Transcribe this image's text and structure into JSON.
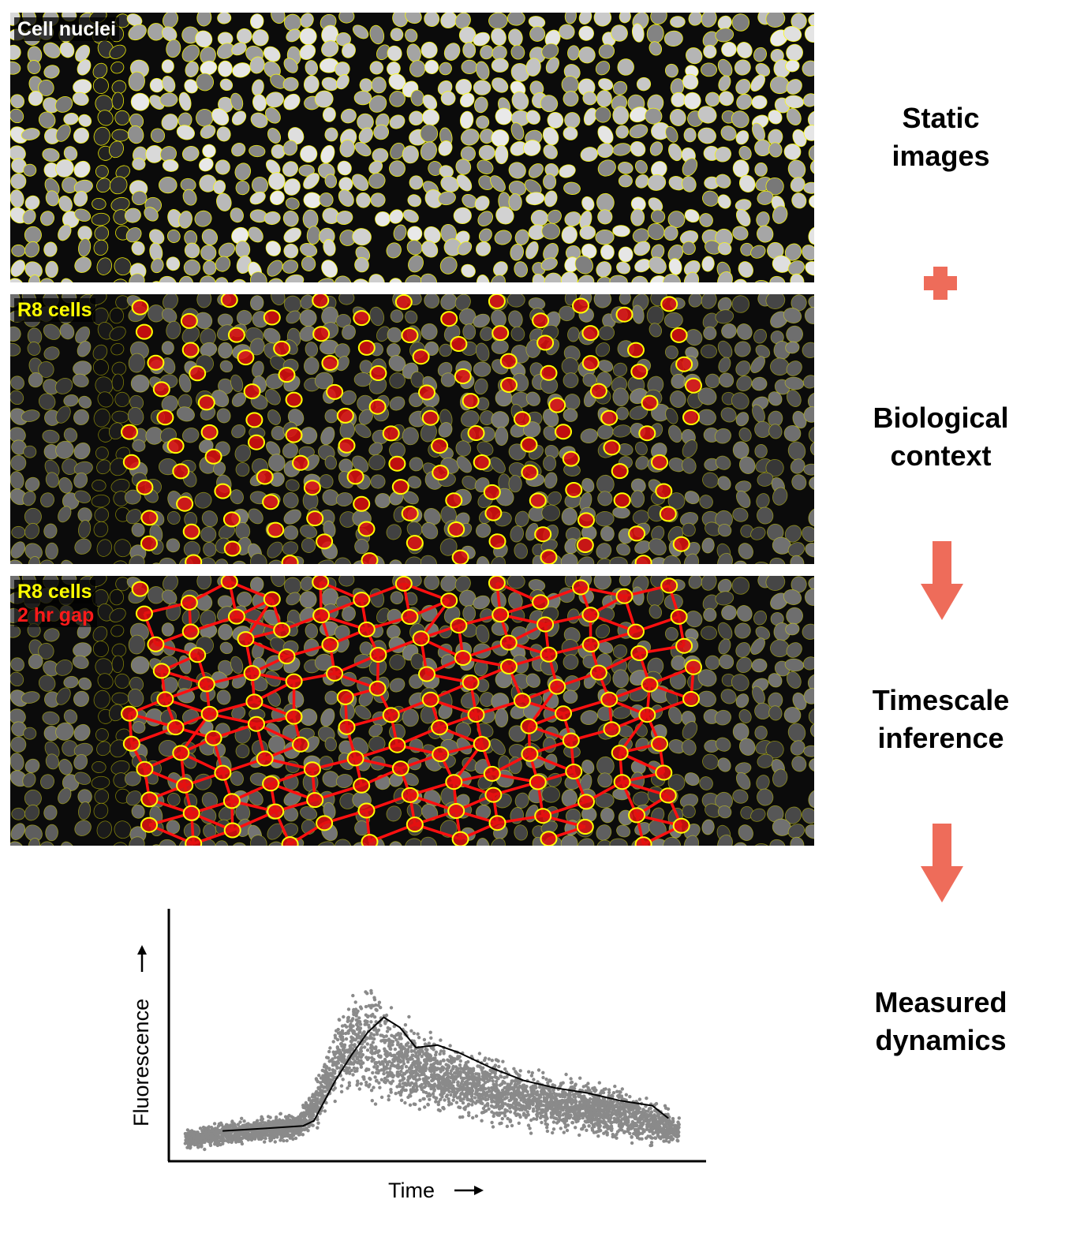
{
  "panels": [
    {
      "id": "nuclei",
      "labels": [
        "Cell nuclei"
      ]
    },
    {
      "id": "r8",
      "labels": [
        "R8 cells"
      ]
    },
    {
      "id": "r8gap",
      "labels": [
        "R8 cells",
        "2 hr gap"
      ]
    }
  ],
  "steps": [
    {
      "lines": [
        "Static",
        "images"
      ]
    },
    {
      "lines": [
        "Biological",
        "context"
      ]
    },
    {
      "lines": [
        "Timescale",
        "inference"
      ]
    },
    {
      "lines": [
        "Measured",
        "dynamics"
      ]
    }
  ],
  "connectors": [
    "plus-icon",
    "down-arrow-icon",
    "down-arrow-icon"
  ],
  "colors": {
    "accent": "#ee6c5a",
    "nucleus_outline": "#ffff00",
    "r8_fill": "#e01010",
    "link": "#ff1010",
    "scatter": "#8a8a8a",
    "trend": "#000000"
  },
  "chart_data": {
    "type": "scatter",
    "xlabel": "Time",
    "ylabel": "Fluorescence",
    "axis_arrows": true,
    "grid": false,
    "legend": "none",
    "ticks": false,
    "xlim": [
      0,
      100
    ],
    "ylim": [
      0,
      100
    ],
    "series": [
      {
        "kind": "scatter-cloud",
        "envelope": [
          {
            "x": 3,
            "lo": 4,
            "hi": 13
          },
          {
            "x": 12,
            "lo": 6,
            "hi": 16
          },
          {
            "x": 24,
            "lo": 8,
            "hi": 19
          },
          {
            "x": 28,
            "lo": 14,
            "hi": 34
          },
          {
            "x": 33,
            "lo": 25,
            "hi": 65
          },
          {
            "x": 38,
            "lo": 20,
            "hi": 72
          },
          {
            "x": 44,
            "lo": 18,
            "hi": 55
          },
          {
            "x": 52,
            "lo": 18,
            "hi": 48
          },
          {
            "x": 62,
            "lo": 12,
            "hi": 40
          },
          {
            "x": 72,
            "lo": 10,
            "hi": 34
          },
          {
            "x": 82,
            "lo": 8,
            "hi": 30
          },
          {
            "x": 90,
            "lo": 6,
            "hi": 24
          },
          {
            "x": 95,
            "lo": 5,
            "hi": 18
          }
        ]
      },
      {
        "kind": "line",
        "x": [
          10,
          18,
          25,
          27,
          29,
          31,
          34,
          37,
          40,
          43,
          46,
          50,
          54,
          60,
          66,
          72,
          78,
          84,
          90,
          93
        ],
        "y": [
          12,
          13,
          14,
          16,
          24,
          32,
          42,
          51,
          57,
          53,
          45,
          46,
          43,
          37,
          32,
          29,
          27,
          24,
          22,
          17
        ]
      }
    ]
  }
}
